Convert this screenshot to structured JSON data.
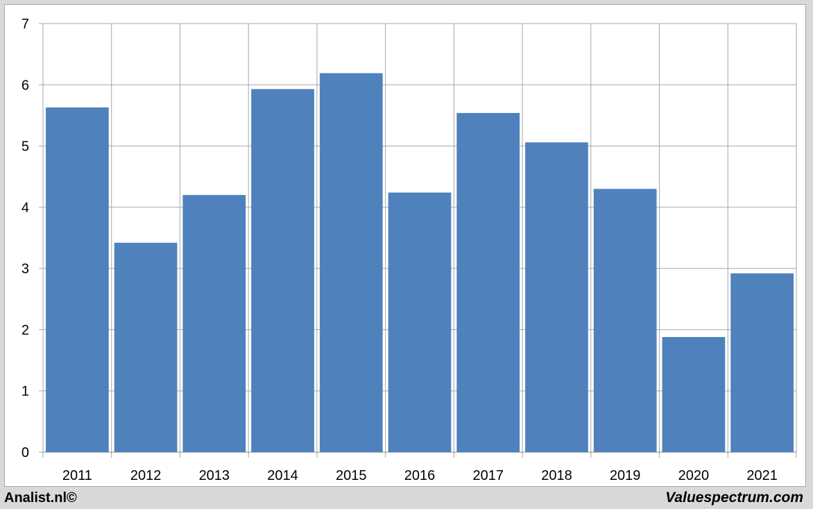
{
  "chart_data": {
    "type": "bar",
    "categories": [
      "2011",
      "2012",
      "2013",
      "2014",
      "2015",
      "2016",
      "2017",
      "2018",
      "2019",
      "2020",
      "2021"
    ],
    "values": [
      5.63,
      3.42,
      4.2,
      5.93,
      6.19,
      4.24,
      5.54,
      5.06,
      4.3,
      1.88,
      2.92
    ],
    "title": "",
    "xlabel": "",
    "ylabel": "",
    "ylim": [
      0,
      7
    ],
    "yticks": [
      0,
      1,
      2,
      3,
      4,
      5,
      6,
      7
    ],
    "grid": true,
    "bar_color": "#4f81bd",
    "grid_color": "#a6a6a6"
  },
  "footer": {
    "left": "Analist.nl©",
    "right": "Valuespectrum.com"
  }
}
